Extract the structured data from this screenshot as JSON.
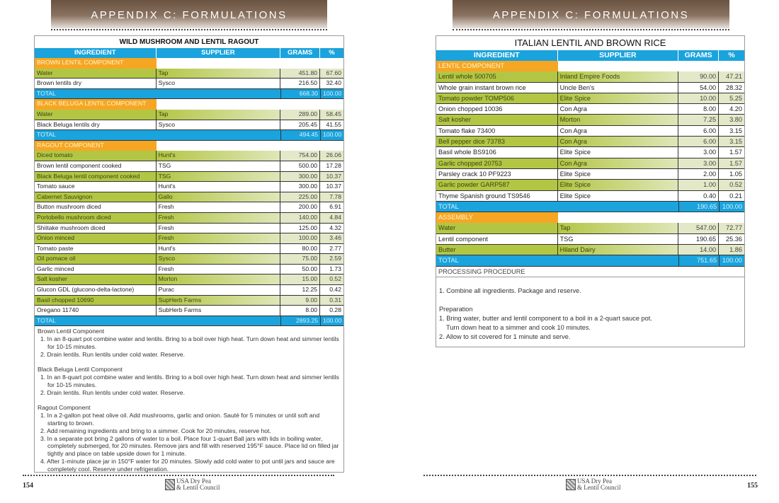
{
  "header": {
    "left": "APPENDIX C: FORMULATIONS",
    "right": "APPENDIX C: FORMULATIONS"
  },
  "columns": {
    "ingredient": "INGREDIENT",
    "supplier": "SUPPLIER",
    "grams": "GRAMS",
    "pct": "%"
  },
  "left": {
    "title": "WILD MUSHROOM AND LENTIL RAGOUT",
    "rows": [
      {
        "t": "sec",
        "a": "BROWN LENTIL COMPONENT"
      },
      {
        "t": "g",
        "a": "Water",
        "b": "Tap",
        "c": "451.80",
        "d": "67.60"
      },
      {
        "t": "w",
        "a": "Brown lentils dry",
        "b": "Sysco",
        "c": "216.50",
        "d": "32.40"
      },
      {
        "t": "tot",
        "a": "TOTAL",
        "c": "668.30",
        "d": "100.00"
      },
      {
        "t": "sec",
        "a": "BLACK BELUGA LENTIL COMPONENT"
      },
      {
        "t": "g",
        "a": "Water",
        "b": "Tap",
        "c": "289.00",
        "d": "58.45"
      },
      {
        "t": "w",
        "a": "Black Beluga lentils dry",
        "b": "Sysco",
        "c": "205.45",
        "d": "41.55"
      },
      {
        "t": "tot",
        "a": "TOTAL",
        "c": "494.45",
        "d": "100.00"
      },
      {
        "t": "sec",
        "a": "RAGOUT COMPONENT"
      },
      {
        "t": "g",
        "a": "Diced tomato",
        "b": "Hunt's",
        "c": "754.00",
        "d": "26.06"
      },
      {
        "t": "w",
        "a": "Brown lentil component cooked",
        "b": "TSG",
        "c": "500.00",
        "d": "17.28"
      },
      {
        "t": "g",
        "a": "Black Beluga lentil component cooked",
        "b": "TSG",
        "c": "300.00",
        "d": "10.37"
      },
      {
        "t": "w",
        "a": "Tomato sauce",
        "b": "Hunt's",
        "c": "300.00",
        "d": "10.37"
      },
      {
        "t": "g",
        "a": "Cabernet Sauvignon",
        "b": "Gallo",
        "c": "225.00",
        "d": "7.78"
      },
      {
        "t": "w",
        "a": "Button mushroom diced",
        "b": "Fresh",
        "c": "200.00",
        "d": "6.91"
      },
      {
        "t": "g",
        "a": "Portobello mushroom diced",
        "b": "Fresh",
        "c": "140.00",
        "d": "4.84"
      },
      {
        "t": "w",
        "a": "Shiitake mushroom diced",
        "b": "Fresh",
        "c": "125.00",
        "d": "4.32"
      },
      {
        "t": "g",
        "a": "Onion minced",
        "b": "Fresh",
        "c": "100.00",
        "d": "3.46"
      },
      {
        "t": "w",
        "a": "Tomato paste",
        "b": "Hunt's",
        "c": "80.00",
        "d": "2.77"
      },
      {
        "t": "g",
        "a": "Oil pomace oil",
        "b": "Sysco",
        "c": "75.00",
        "d": "2.59"
      },
      {
        "t": "w",
        "a": "Garlic minced",
        "b": "Fresh",
        "c": "50.00",
        "d": "1.73"
      },
      {
        "t": "g",
        "a": "Salt kosher",
        "b": "Morton",
        "c": "15.00",
        "d": "0.52"
      },
      {
        "t": "w",
        "a": "Glucon GDL (glucono-delta-lactone)",
        "b": "Purac",
        "c": "12.25",
        "d": "0.42"
      },
      {
        "t": "g",
        "a": "Basil chopped 10690",
        "b": "SupHerb Farms",
        "c": "9.00",
        "d": "0.31"
      },
      {
        "t": "w",
        "a": "Oregano 11740",
        "b": "SubHerb Farms",
        "c": "8.00",
        "d": "0.28"
      },
      {
        "t": "tot",
        "a": "TOTAL",
        "c": "2893.25",
        "d": "100.00"
      }
    ],
    "procedure": [
      {
        "t": "h",
        "x": "Brown Lentil Component"
      },
      {
        "t": "i",
        "x": "1.  In an 8-quart pot combine water and lentils. Bring to a boil over high heat. Turn down heat and simmer lentils for 10-15 minutes."
      },
      {
        "t": "i",
        "x": "2.  Drain lentils. Run lentils under cold water. Reserve."
      },
      {
        "t": "s"
      },
      {
        "t": "h",
        "x": "Black Beluga Lentil Component"
      },
      {
        "t": "i",
        "x": "1.  In an 8-quart pot combine water and lentils. Bring to a boil over high heat. Turn down heat and simmer lentils for 10-15 minutes."
      },
      {
        "t": "i",
        "x": "2.  Drain lentils. Run lentils under cold water. Reserve."
      },
      {
        "t": "s"
      },
      {
        "t": "h",
        "x": "Ragout Component"
      },
      {
        "t": "i",
        "x": "1.  In a 2-gallon pot heat olive oil. Add mushrooms, garlic and onion. Sauté for 5 minutes or until soft and starting to brown."
      },
      {
        "t": "i",
        "x": "2.  Add remaining ingredients and bring to a simmer. Cook for 20 minutes, reserve hot."
      },
      {
        "t": "i",
        "x": "3.  In a separate pot bring 2 gallons of water to a boil. Place four 1-quart Ball jars with lids in boiling water, completely submerged, for 20 minutes. Remove jars and fill with reserved 195°F sauce. Place lid on filled jar tightly and place on table upside down for 1 minute."
      },
      {
        "t": "i",
        "x": "4.  After 1-minute place jar in 150°F water for 20 minutes. Slowly add cold water to pot until jars and sauce are completely cool. Reserve under refrigeration."
      }
    ]
  },
  "right": {
    "title": "ITALIAN LENTIL AND BROWN RICE",
    "rows": [
      {
        "t": "sec",
        "a": "LENTIL COMPONENT"
      },
      {
        "t": "g",
        "a": "Lentil whole 500705",
        "b": "Inland Empire Foods",
        "c": "90.00",
        "d": "47.21"
      },
      {
        "t": "w",
        "a": "Whole grain instant brown rice",
        "b": "Uncle Ben's",
        "c": "54.00",
        "d": "28.32"
      },
      {
        "t": "g",
        "a": "Tomato powder TOMP506",
        "b": "Elite Spice",
        "c": "10.00",
        "d": "5.25"
      },
      {
        "t": "w",
        "a": "Onion chopped 10036",
        "b": "Con Agra",
        "c": "8.00",
        "d": "4.20"
      },
      {
        "t": "g",
        "a": "Salt kosher",
        "b": "Morton",
        "c": "7.25",
        "d": "3.80"
      },
      {
        "t": "w",
        "a": "Tomato flake 73400",
        "b": "Con Agra",
        "c": "6.00",
        "d": "3.15"
      },
      {
        "t": "g",
        "a": "Bell pepper dice 73783",
        "b": "Con Agra",
        "c": "6.00",
        "d": "3.15"
      },
      {
        "t": "w",
        "a": "Basil whole BS9106",
        "b": "Elite Spice",
        "c": "3.00",
        "d": "1.57"
      },
      {
        "t": "g",
        "a": "Garlic chopped 20753",
        "b": "Con Agra",
        "c": "3.00",
        "d": "1.57"
      },
      {
        "t": "w",
        "a": "Parsley crack 10 PF9223",
        "b": "Elite Spice",
        "c": "2.00",
        "d": "1.05"
      },
      {
        "t": "g",
        "a": "Garlic powder GARP587",
        "b": "Elite Spice",
        "c": "1.00",
        "d": "0.52"
      },
      {
        "t": "w",
        "a": "Thyme Spanish ground TS9546",
        "b": "Elite Spice",
        "c": "0.40",
        "d": "0.21"
      },
      {
        "t": "tot",
        "a": "TOTAL",
        "c": "190.65",
        "d": "100.00"
      },
      {
        "t": "sec",
        "a": "ASSEMBLY"
      },
      {
        "t": "g",
        "a": "Water",
        "b": "Tap",
        "c": "547.00",
        "d": "72.77"
      },
      {
        "t": "w",
        "a": "Lentil component",
        "b": "TSG",
        "c": "190.65",
        "d": "25.36"
      },
      {
        "t": "g",
        "a": "Butter",
        "b": "Hiland Dairy",
        "c": "14.00",
        "d": "1.86"
      },
      {
        "t": "tot",
        "a": "TOTAL",
        "c": "751.65",
        "d": "100.00"
      }
    ],
    "procedure_label": "PROCESSING PROCEDURE",
    "procedure": [
      {
        "t": "s"
      },
      {
        "t": "h",
        "x": "1. Combine all ingredients. Package and reserve."
      },
      {
        "t": "s"
      },
      {
        "t": "h",
        "x": "Preparation"
      },
      {
        "t": "h",
        "x": "1. Bring water, butter and lentil component to a boil in a 2-quart sauce pot."
      },
      {
        "t": "h",
        "x": "    Turn down heat to a simmer and cook 10 minutes."
      },
      {
        "t": "h",
        "x": "2. Allow to sit covered for 1 minute and serve."
      }
    ]
  },
  "footer": {
    "left_page": "154",
    "right_page": "155",
    "logo_line1": "USA Dry Pea",
    "logo_line2": "& Lentil Council"
  },
  "colors": {
    "header_blue": "#1aa3dc",
    "section_orange": "#f6a623",
    "row_green": "#b3c644",
    "banner_brown": "#6a5340"
  }
}
